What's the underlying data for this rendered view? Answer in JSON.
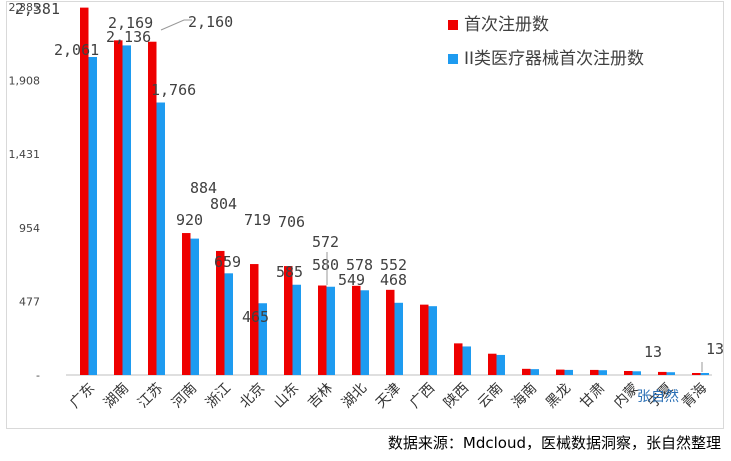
{
  "chart_data": {
    "type": "bar",
    "title": "",
    "xlabel": "",
    "ylabel": "",
    "ylim": [
      0,
      2385
    ],
    "yticks": [
      0,
      477,
      954,
      1431,
      1908,
      2385
    ],
    "ytick_labels": [
      "-",
      "477",
      "954",
      "1,431",
      "1,908",
      "2,385"
    ],
    "grid": false,
    "legend_position": "top-right",
    "categories": [
      "广东",
      "湖南",
      "江苏",
      "河南",
      "浙江",
      "北京",
      "山东",
      "吉林",
      "湖北",
      "天津",
      "广西",
      "陕西",
      "云南",
      "海南",
      "黑龙",
      "甘肃",
      "内蒙",
      "宁夏",
      "青海"
    ],
    "series": [
      {
        "name": "首次注册数",
        "color": "#ee0000",
        "values": [
          2381,
          2169,
          2160,
          920,
          804,
          719,
          706,
          580,
          578,
          552,
          456,
          205,
          138,
          40,
          35,
          33,
          26,
          20,
          13
        ],
        "labels": [
          "2,381",
          "2,169",
          "2,160",
          "920",
          "804",
          "719",
          "706",
          "580",
          "578",
          "552",
          "456",
          "205",
          "138",
          "",
          "",
          "",
          "",
          "",
          "13"
        ]
      },
      {
        "name": "II类医疗器械首次注册数",
        "color": "#1e9bf0",
        "values": [
          2061,
          2136,
          1766,
          884,
          659,
          465,
          585,
          572,
          549,
          468,
          446,
          185,
          130,
          38,
          33,
          31,
          24,
          18,
          13
        ],
        "labels": [
          "2,061",
          "2,136",
          "1,766",
          "884",
          "659",
          "465",
          "585",
          "572",
          "549",
          "468",
          "",
          "",
          "",
          "",
          "",
          "",
          "",
          "",
          "13"
        ]
      }
    ]
  },
  "source_note": "数据来源：Mdcloud，医械数据洞察，张自然整理",
  "watermark": "张自然"
}
